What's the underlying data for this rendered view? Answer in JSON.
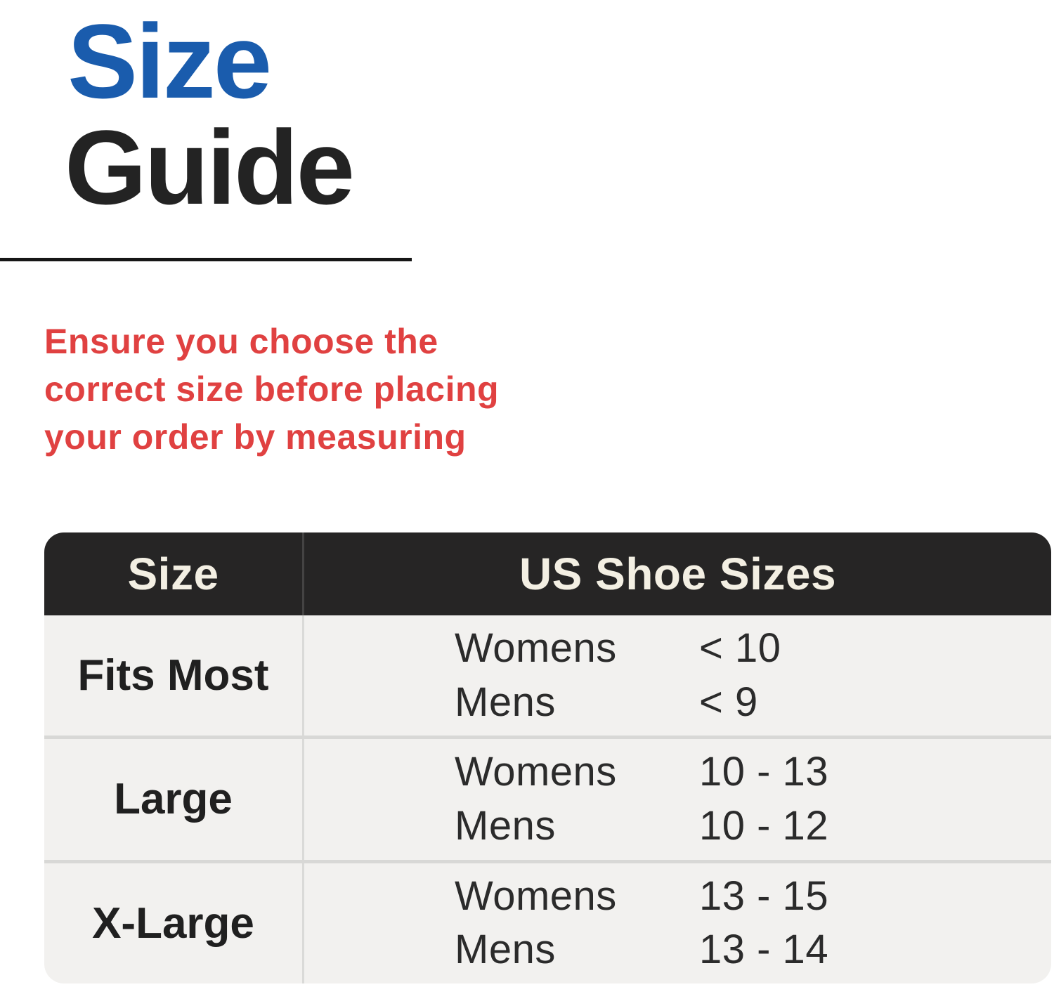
{
  "title": {
    "size": "Size",
    "guide": "Guide"
  },
  "note": {
    "lines": [
      "Ensure you choose the",
      "correct size before placing",
      "your order by measuring"
    ]
  },
  "table": {
    "header": {
      "size_label": "Size",
      "shoe_label": "US Shoe Sizes"
    },
    "rows": [
      {
        "size": "Fits Most",
        "entries": [
          {
            "label": "Womens",
            "value": "< 10"
          },
          {
            "label": "Mens",
            "value": "< 9"
          }
        ]
      },
      {
        "size": "Large",
        "entries": [
          {
            "label": "Womens",
            "value": "10 - 13"
          },
          {
            "label": "Mens",
            "value": "10 - 12"
          }
        ]
      },
      {
        "size": "X-Large",
        "entries": [
          {
            "label": "Womens",
            "value": "13 - 15"
          },
          {
            "label": "Mens",
            "value": "13 - 14"
          }
        ]
      }
    ]
  },
  "colors": {
    "accent_blue": "#1A5CAD",
    "accent_red": "#E04141",
    "title_black": "#232323",
    "header_bg": "#262525",
    "header_text": "#F3EFE3",
    "row_bg": "#F2F1EF",
    "row_divider": "#D8D8D6"
  }
}
